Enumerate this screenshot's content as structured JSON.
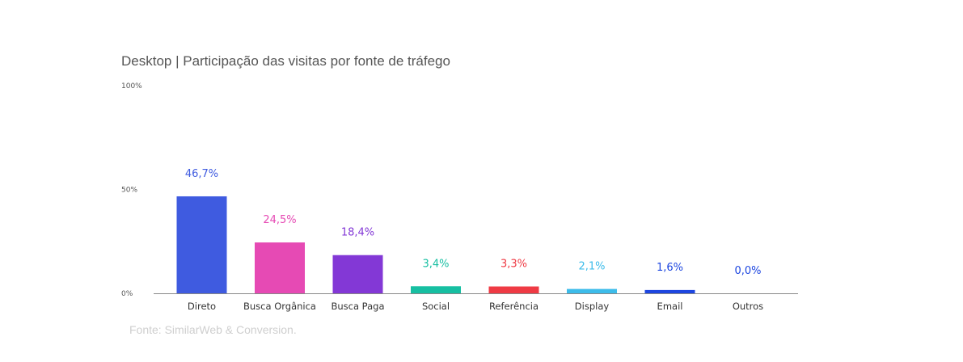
{
  "chart_data": {
    "type": "bar",
    "title": "Desktop | Participação das visitas por fonte de tráfego",
    "xlabel": "",
    "ylabel": "",
    "ylim": [
      0,
      100
    ],
    "y_ticks": [
      "0%",
      "50%",
      "100%"
    ],
    "y_tick_values": [
      0,
      50,
      100
    ],
    "grid": false,
    "legend": "none",
    "categories": [
      "Direto",
      "Busca Orgânica",
      "Busca Paga",
      "Social",
      "Referência",
      "Display",
      "Email",
      "Outros"
    ],
    "values": [
      46.7,
      24.5,
      18.4,
      3.4,
      3.3,
      2.1,
      1.6,
      0.0
    ],
    "data_labels": [
      "46,7%",
      "24,5%",
      "18,4%",
      "3,4%",
      "3,3%",
      "2,1%",
      "1,6%",
      "0,0%"
    ],
    "colors": [
      "#3F5BE0",
      "#E64AB4",
      "#8338D6",
      "#17BFA2",
      "#EF3A44",
      "#3DBCEA",
      "#1D46E0",
      "#1D46E0"
    ],
    "label_colors": [
      "#3F5BE0",
      "#E64AB4",
      "#8338D6",
      "#17BFA2",
      "#EF3A44",
      "#3DBCEA",
      "#1D46E0",
      "#1D46E0"
    ],
    "axis_color": "#888888"
  },
  "source_note": "Fonte: SimilarWeb & Conversion."
}
